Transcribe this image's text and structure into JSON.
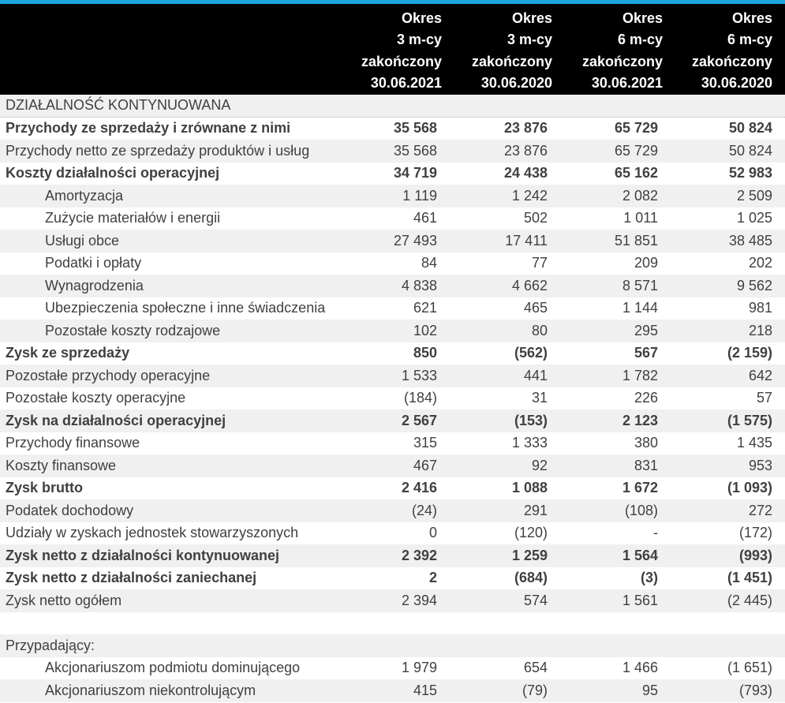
{
  "colors": {
    "accent": "#1CA5DE",
    "header_bg": "#000000",
    "header_text": "#FFFFFF",
    "row_shaded": "#F0F0F0",
    "text": "#404040"
  },
  "header": {
    "columns": [
      {
        "lines": [
          "Okres",
          "3 m-cy",
          "zakończony",
          "30.06.2021"
        ]
      },
      {
        "lines": [
          "Okres",
          "3 m-cy",
          "zakończony",
          "30.06.2020"
        ]
      },
      {
        "lines": [
          "Okres",
          "6 m-cy",
          "zakończony",
          "30.06.2021"
        ]
      },
      {
        "lines": [
          "Okres",
          "6 m-cy",
          "zakończony",
          "30.06.2020"
        ]
      }
    ]
  },
  "table": {
    "rows": [
      {
        "label": "DZIAŁALNOŚĆ KONTYNUOWANA",
        "values": [
          "",
          "",
          "",
          ""
        ],
        "section": true,
        "divider": true
      },
      {
        "label": "Przychody ze sprzedaży i zrównane z nimi",
        "values": [
          "35 568",
          "23 876",
          "65 729",
          "50 824"
        ],
        "bold": true
      },
      {
        "label": "Przychody netto ze sprzedaży produktów i usług",
        "values": [
          "35 568",
          "23 876",
          "65 729",
          "50 824"
        ]
      },
      {
        "label": "Koszty działalności operacyjnej",
        "values": [
          "34 719",
          "24 438",
          "65 162",
          "52 983"
        ],
        "bold": true
      },
      {
        "label": "Amortyzacja",
        "values": [
          "1 119",
          "1 242",
          "2 082",
          "2 509"
        ],
        "indent": true
      },
      {
        "label": "Zużycie materiałów i energii",
        "values": [
          "461",
          "502",
          "1 011",
          "1 025"
        ],
        "indent": true
      },
      {
        "label": "Usługi obce",
        "values": [
          "27 493",
          "17 411",
          "51 851",
          "38 485"
        ],
        "indent": true
      },
      {
        "label": "Podatki i opłaty",
        "values": [
          "84",
          "77",
          "209",
          "202"
        ],
        "indent": true
      },
      {
        "label": "Wynagrodzenia",
        "values": [
          "4 838",
          "4 662",
          "8 571",
          "9 562"
        ],
        "indent": true
      },
      {
        "label": "Ubezpieczenia społeczne i inne świadczenia",
        "values": [
          "621",
          "465",
          "1 144",
          "981"
        ],
        "indent": true
      },
      {
        "label": "Pozostałe koszty rodzajowe",
        "values": [
          "102",
          "80",
          "295",
          "218"
        ],
        "indent": true
      },
      {
        "label": "Zysk ze sprzedaży",
        "values": [
          "850",
          "(562)",
          "567",
          "(2 159)"
        ],
        "bold": true
      },
      {
        "label": "Pozostałe przychody operacyjne",
        "values": [
          "1 533",
          "441",
          "1 782",
          "642"
        ]
      },
      {
        "label": "Pozostałe koszty operacyjne",
        "values": [
          "(184)",
          "31",
          "226",
          "57"
        ]
      },
      {
        "label": "Zysk na działalności operacyjnej",
        "values": [
          "2 567",
          "(153)",
          "2 123",
          "(1 575)"
        ],
        "bold": true
      },
      {
        "label": "Przychody finansowe",
        "values": [
          "315",
          "1 333",
          "380",
          "1 435"
        ]
      },
      {
        "label": "Koszty finansowe",
        "values": [
          "467",
          "92",
          "831",
          "953"
        ]
      },
      {
        "label": "Zysk brutto",
        "values": [
          "2 416",
          "1 088",
          "1 672",
          "(1 093)"
        ],
        "bold": true
      },
      {
        "label": "Podatek dochodowy",
        "values": [
          "(24)",
          "291",
          "(108)",
          "272"
        ]
      },
      {
        "label": "Udziały w zyskach jednostek stowarzyszonych",
        "values": [
          "0",
          "(120)",
          "-",
          "(172)"
        ]
      },
      {
        "label": "Zysk netto z działalności kontynuowanej",
        "values": [
          "2 392",
          "1 259",
          "1 564",
          "(993)"
        ],
        "bold": true
      },
      {
        "label": "Zysk netto z działalności zaniechanej",
        "values": [
          "2",
          "(684)",
          "(3)",
          "(1 451)"
        ],
        "bold": true
      },
      {
        "label": "Zysk netto ogółem",
        "values": [
          "2 394",
          "574",
          "1 561",
          "(2 445)"
        ]
      },
      {
        "label": "",
        "values": [
          "",
          "",
          "",
          ""
        ],
        "blank": true
      },
      {
        "label": "Przypadający:",
        "values": [
          "",
          "",
          "",
          ""
        ],
        "section": true
      },
      {
        "label": "Akcjonariuszom podmiotu dominującego",
        "values": [
          "1 979",
          "654",
          "1 466",
          "(1 651)"
        ],
        "indent": true
      },
      {
        "label": "Akcjonariuszom niekontrolującym",
        "values": [
          "415",
          "(79)",
          "95",
          "(793)"
        ],
        "indent": true
      }
    ]
  }
}
